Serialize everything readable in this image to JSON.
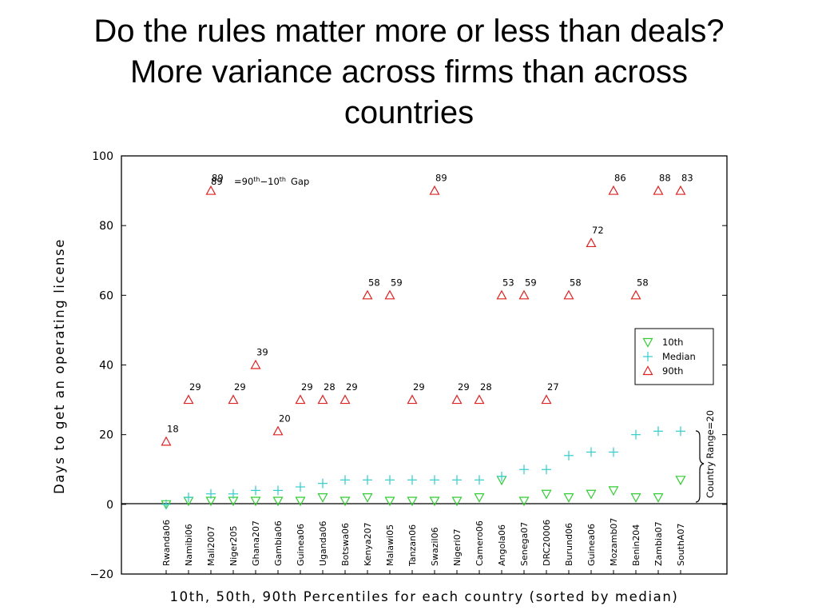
{
  "title_lines": [
    "Do the rules matter more or less than deals?",
    "More variance across firms than across",
    "countries"
  ],
  "chart_data": {
    "type": "scatter",
    "ylabel": "Days to get an operating license",
    "xlabel": "10th, 50th, 90th Percentiles for each country (sorted by median)",
    "ylim": [
      -20,
      100
    ],
    "yticks": [
      -20,
      0,
      20,
      40,
      60,
      80,
      100
    ],
    "grid": false,
    "legend_position": "right",
    "categories": [
      "Rwanda06",
      "Namibi06",
      "Mali2007",
      "Niger205",
      "Ghana207",
      "Gambia06",
      "Guinea06",
      "Uganda06",
      "Botswa06",
      "Kenya207",
      "Malawi05",
      "Tanzan06",
      "Swazil06",
      "Nigeri07",
      "Camero06",
      "Angola06",
      "Senega07",
      "DRC20006",
      "Burund06",
      "Guinea06",
      "Mozamb07",
      "Benin204",
      "Zambia07",
      "SouthA07"
    ],
    "series": [
      {
        "name": "10th",
        "marker": "triangle-down",
        "color": "#33cc33",
        "values": [
          0,
          1,
          1,
          1,
          1,
          1,
          1,
          2,
          1,
          2,
          1,
          1,
          1,
          1,
          2,
          7,
          1,
          3,
          2,
          3,
          4,
          2,
          2,
          7
        ]
      },
      {
        "name": "Median",
        "marker": "plus",
        "color": "#33cccc",
        "values": [
          0,
          2,
          3,
          3,
          4,
          4,
          5,
          6,
          7,
          7,
          7,
          7,
          7,
          7,
          7,
          8,
          10,
          10,
          14,
          15,
          15,
          20,
          21,
          21
        ]
      },
      {
        "name": "90th",
        "marker": "triangle-up",
        "color": "#dd2222",
        "values": [
          18,
          30,
          90,
          30,
          40,
          21,
          30,
          30,
          30,
          60,
          60,
          30,
          90,
          30,
          30,
          60,
          60,
          30,
          60,
          75,
          90,
          60,
          90,
          90
        ],
        "labels": [
          "18",
          "29",
          "89",
          "29",
          "39",
          "20",
          "29",
          "28",
          "29",
          "58",
          "59",
          "29",
          "89",
          "29",
          "28",
          "53",
          "59",
          "27",
          "58",
          "72",
          "86",
          "58",
          "88",
          "83"
        ]
      }
    ],
    "annotations": {
      "gap_number": "89",
      "gap_text_eq": "=90",
      "gap_sup1": "th",
      "gap_dash": "−10",
      "gap_sup2": "th",
      "gap_word": "Gap",
      "range_label": "Country Range=20"
    }
  }
}
